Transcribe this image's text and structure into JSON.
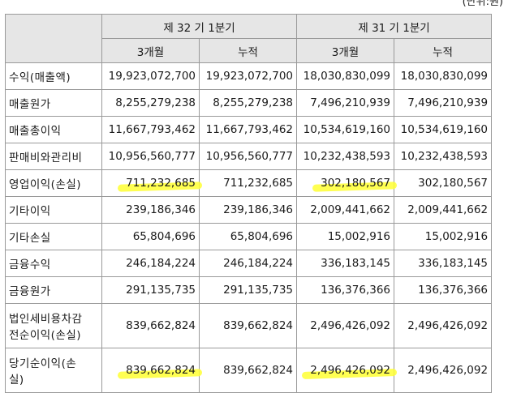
{
  "unit_text": "(단위:원)",
  "header": {
    "period1": "제 32 기 1분기",
    "period2": "제 31 기 1분기",
    "sub": [
      "3개월",
      "누적",
      "3개월",
      "누적"
    ]
  },
  "rows": [
    {
      "label": "수익(매출액)",
      "values": [
        "19,923,072,700",
        "19,923,072,700",
        "18,030,830,099",
        "18,030,830,099"
      ]
    },
    {
      "label": "매출원가",
      "values": [
        "8,255,279,238",
        "8,255,279,238",
        "7,496,210,939",
        "7,496,210,939"
      ]
    },
    {
      "label": "매출총이익",
      "values": [
        "11,667,793,462",
        "11,667,793,462",
        "10,534,619,160",
        "10,534,619,160"
      ]
    },
    {
      "label": "판매비와관리비",
      "values": [
        "10,956,560,777",
        "10,956,560,777",
        "10,232,438,593",
        "10,232,438,593"
      ]
    },
    {
      "label": "영업이익(손실)",
      "values": [
        "711,232,685",
        "711,232,685",
        "302,180,567",
        "302,180,567"
      ]
    },
    {
      "label": "기타이익",
      "values": [
        "239,186,346",
        "239,186,346",
        "2,009,441,662",
        "2,009,441,662"
      ]
    },
    {
      "label": "기타손실",
      "values": [
        "65,804,696",
        "65,804,696",
        "15,002,916",
        "15,002,916"
      ]
    },
    {
      "label": "금융수익",
      "values": [
        "246,184,224",
        "246,184,224",
        "336,183,145",
        "336,183,145"
      ]
    },
    {
      "label": "금융원가",
      "values": [
        "291,135,735",
        "291,135,735",
        "136,376,366",
        "136,376,366"
      ]
    },
    {
      "label_line1": "법인세비용차감",
      "label_line2": "전순이익(손실)",
      "values": [
        "839,662,824",
        "839,662,824",
        "2,496,426,092",
        "2,496,426,092"
      ]
    },
    {
      "label_line1": "당기순이익(손",
      "label_line2": "실)",
      "values": [
        "839,662,824",
        "839,662,824",
        "2,496,426,092",
        "2,496,426,092"
      ]
    }
  ],
  "highlight_color": "#ffff33"
}
